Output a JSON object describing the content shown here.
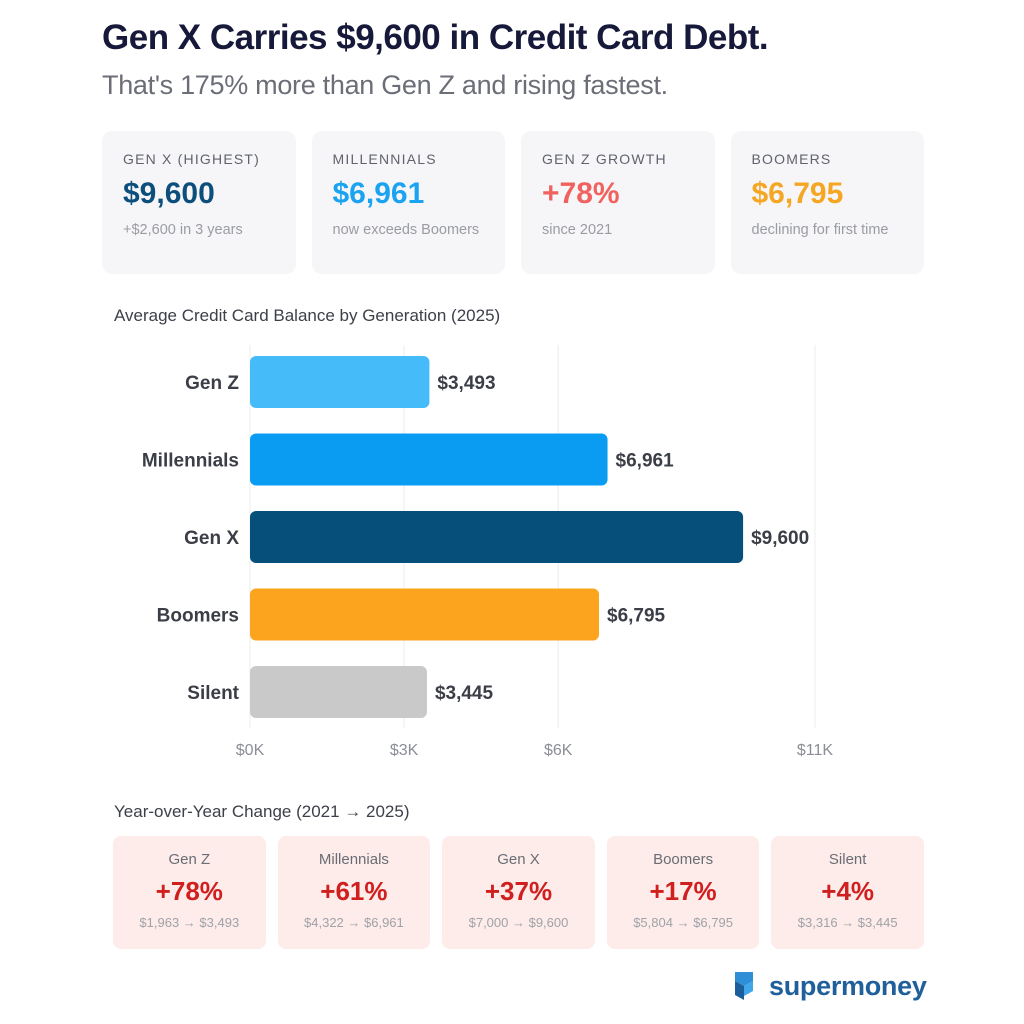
{
  "header": {
    "title": "Gen X Carries $9,600 in Credit Card Debt.",
    "subtitle": "That's 175% more than Gen Z and rising fastest."
  },
  "cards": [
    {
      "label": "GEN X (HIGHEST)",
      "value": "$9,600",
      "note": "+$2,600 in 3 years",
      "color": "#0d4f7c"
    },
    {
      "label": "MILLENNIALS",
      "value": "$6,961",
      "note": "now exceeds Boomers",
      "color": "#1aa3f0"
    },
    {
      "label": "GEN Z GROWTH",
      "value": "+78%",
      "note": "since 2021",
      "color": "#f0625f"
    },
    {
      "label": "BOOMERS",
      "value": "$6,795",
      "note": "declining for first time",
      "color": "#f5a623"
    }
  ],
  "chart_data": {
    "type": "bar",
    "orientation": "horizontal",
    "title": "Average Credit Card Balance by Generation (2025)",
    "categories": [
      "Gen Z",
      "Millennials",
      "Gen X",
      "Boomers",
      "Silent"
    ],
    "values": [
      3493,
      6961,
      9600,
      6795,
      3445
    ],
    "value_labels": [
      "$3,493",
      "$6,961",
      "$9,600",
      "$6,795",
      "$3,445"
    ],
    "colors": [
      "#45bbfa",
      "#0a9cf3",
      "#074f7b",
      "#fca41d",
      "#c9c9c9"
    ],
    "xticks": [
      {
        "value": 0,
        "label": "$0K"
      },
      {
        "value": 3000,
        "label": "$3K"
      },
      {
        "value": 6000,
        "label": "$6K"
      },
      {
        "value": 11000,
        "label": "$11K"
      }
    ],
    "xlim": [
      0,
      11000
    ],
    "grid": "vertical"
  },
  "yoy": {
    "title": "Year-over-Year Change (2021 → 2025)",
    "items": [
      {
        "name": "Gen Z",
        "pct": "+78%",
        "range": "$1,963 → $3,493"
      },
      {
        "name": "Millennials",
        "pct": "+61%",
        "range": "$4,322 → $6,961"
      },
      {
        "name": "Gen X",
        "pct": "+37%",
        "range": "$7,000 → $9,600"
      },
      {
        "name": "Boomers",
        "pct": "+17%",
        "range": "$5,804 → $6,795"
      },
      {
        "name": "Silent",
        "pct": "+4%",
        "range": "$3,316 → $3,445"
      }
    ]
  },
  "brand": {
    "name": "supermoney",
    "icon": "supermoney-logo-icon",
    "color": "#1f5f9a"
  }
}
